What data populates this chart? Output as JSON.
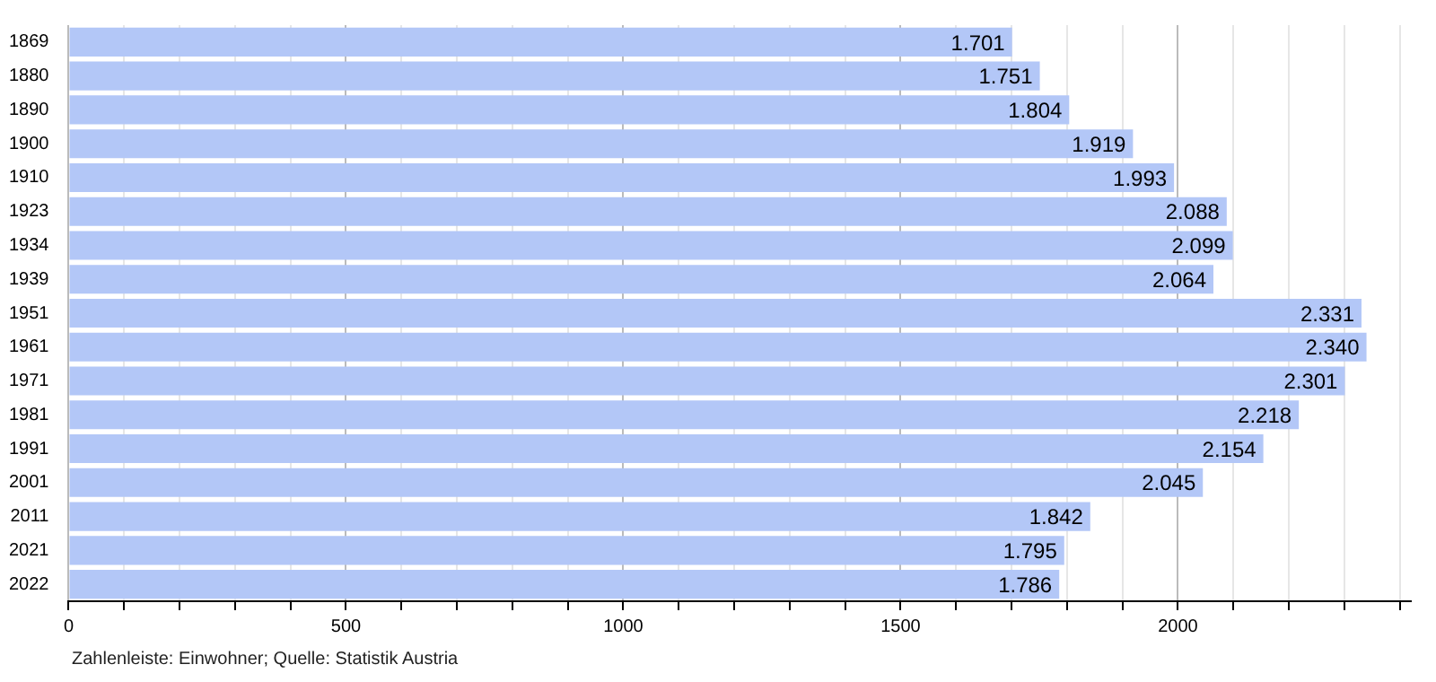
{
  "chart_data": {
    "type": "bar",
    "orientation": "horizontal",
    "categories": [
      "1869",
      "1880",
      "1890",
      "1900",
      "1910",
      "1923",
      "1934",
      "1939",
      "1951",
      "1961",
      "1971",
      "1981",
      "1991",
      "2001",
      "2011",
      "2021",
      "2022"
    ],
    "values": [
      1701,
      1751,
      1804,
      1919,
      1993,
      2088,
      2099,
      2064,
      2331,
      2340,
      2301,
      2218,
      2154,
      2045,
      1842,
      1795,
      1786
    ],
    "value_labels": [
      "1.701",
      "1.751",
      "1.804",
      "1.919",
      "1.993",
      "2.088",
      "2.099",
      "2.064",
      "2.331",
      "2.340",
      "2.301",
      "2.218",
      "2.154",
      "2.045",
      "1.842",
      "1.795",
      "1.786"
    ],
    "color": "#b3c7f7",
    "xlim": [
      0,
      2420
    ],
    "xticks": [
      0,
      {
        "value": 100,
        "label": null
      },
      {
        "value": 200,
        "label": null
      },
      {
        "value": 300,
        "label": null
      },
      {
        "value": 400,
        "label": null
      },
      500,
      {
        "value": 600,
        "label": null
      },
      {
        "value": 700,
        "label": null
      },
      {
        "value": 800,
        "label": null
      },
      {
        "value": 900,
        "label": null
      },
      1000,
      {
        "value": 1100,
        "label": null
      },
      {
        "value": 1200,
        "label": null
      },
      {
        "value": 1300,
        "label": null
      },
      {
        "value": 1400,
        "label": null
      },
      1500,
      {
        "value": 1600,
        "label": null
      },
      {
        "value": 1700,
        "label": null
      },
      {
        "value": 1800,
        "label": null
      },
      {
        "value": 1900,
        "label": null
      },
      2000,
      {
        "value": 2100,
        "label": null
      },
      {
        "value": 2200,
        "label": null
      },
      {
        "value": 2300,
        "label": null
      },
      {
        "value": 2400,
        "label": null
      }
    ],
    "grid": "x",
    "annotations": [
      "Zahlenleiste: Einwohner; Quelle: Statistik Austria"
    ]
  }
}
